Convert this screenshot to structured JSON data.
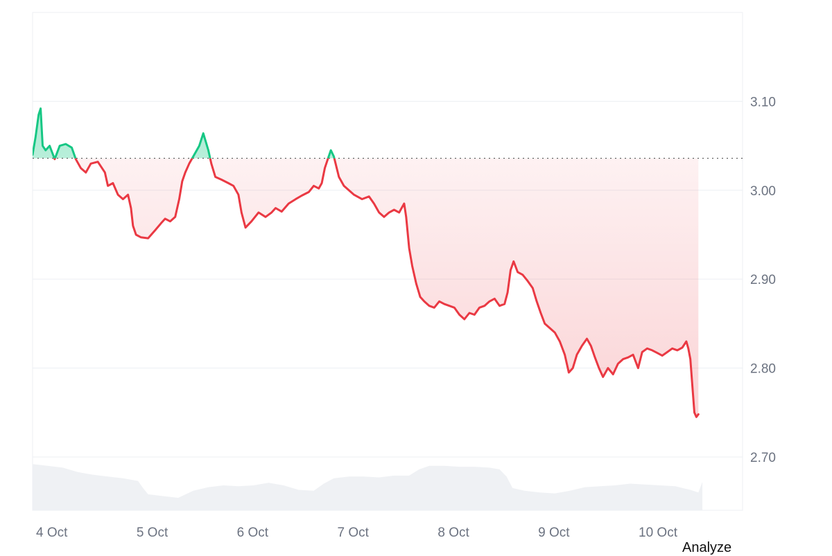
{
  "analyze_label": "Analyze",
  "colors": {
    "up": "#16c784",
    "down": "#ea3943",
    "grid": "#eceff3",
    "baseline": "#555555",
    "volume": "#eff1f4",
    "tick_text": "#6b7280"
  },
  "chart_data": {
    "type": "line",
    "title": "",
    "xlabel": "",
    "ylabel": "",
    "ylim": [
      2.64,
      3.2
    ],
    "xlim": [
      0.0,
      7.07
    ],
    "yticks": [
      "2.70",
      "2.80",
      "2.90",
      "3.00",
      "3.10"
    ],
    "xticks": [
      {
        "label": "4 Oct",
        "x": 0
      },
      {
        "label": "5 Oct",
        "x": 1
      },
      {
        "label": "6 Oct",
        "x": 2
      },
      {
        "label": "7 Oct",
        "x": 3
      },
      {
        "label": "8 Oct",
        "x": 4
      },
      {
        "label": "9 Oct",
        "x": 5
      },
      {
        "label": "10 Oct",
        "x": 6
      }
    ],
    "baseline": 3.036,
    "grid": true,
    "price": [
      [
        0.0,
        3.04
      ],
      [
        0.03,
        3.06
      ],
      [
        0.06,
        3.085
      ],
      [
        0.08,
        3.092
      ],
      [
        0.1,
        3.05
      ],
      [
        0.13,
        3.045
      ],
      [
        0.17,
        3.05
      ],
      [
        0.22,
        3.035
      ],
      [
        0.27,
        3.05
      ],
      [
        0.33,
        3.052
      ],
      [
        0.39,
        3.048
      ],
      [
        0.43,
        3.035
      ],
      [
        0.48,
        3.025
      ],
      [
        0.53,
        3.02
      ],
      [
        0.58,
        3.03
      ],
      [
        0.65,
        3.032
      ],
      [
        0.72,
        3.02
      ],
      [
        0.75,
        3.005
      ],
      [
        0.8,
        3.008
      ],
      [
        0.85,
        2.995
      ],
      [
        0.9,
        2.99
      ],
      [
        0.95,
        2.995
      ],
      [
        0.98,
        2.98
      ],
      [
        1.0,
        2.96
      ],
      [
        1.03,
        2.95
      ],
      [
        1.08,
        2.947
      ],
      [
        1.15,
        2.946
      ],
      [
        1.22,
        2.955
      ],
      [
        1.28,
        2.963
      ],
      [
        1.32,
        2.968
      ],
      [
        1.37,
        2.965
      ],
      [
        1.42,
        2.97
      ],
      [
        1.46,
        2.99
      ],
      [
        1.49,
        3.01
      ],
      [
        1.52,
        3.02
      ],
      [
        1.56,
        3.03
      ],
      [
        1.61,
        3.04
      ],
      [
        1.66,
        3.05
      ],
      [
        1.7,
        3.064
      ],
      [
        1.75,
        3.045
      ],
      [
        1.78,
        3.03
      ],
      [
        1.82,
        3.015
      ],
      [
        1.88,
        3.012
      ],
      [
        1.95,
        3.008
      ],
      [
        2.0,
        3.005
      ],
      [
        2.05,
        2.995
      ],
      [
        2.08,
        2.975
      ],
      [
        2.12,
        2.958
      ],
      [
        2.18,
        2.965
      ],
      [
        2.25,
        2.975
      ],
      [
        2.32,
        2.97
      ],
      [
        2.38,
        2.975
      ],
      [
        2.42,
        2.98
      ],
      [
        2.48,
        2.976
      ],
      [
        2.55,
        2.985
      ],
      [
        2.62,
        2.99
      ],
      [
        2.68,
        2.994
      ],
      [
        2.75,
        2.998
      ],
      [
        2.8,
        3.005
      ],
      [
        2.85,
        3.002
      ],
      [
        2.88,
        3.008
      ],
      [
        2.91,
        3.025
      ],
      [
        2.94,
        3.035
      ],
      [
        2.97,
        3.045
      ],
      [
        3.0,
        3.038
      ],
      [
        3.05,
        3.015
      ],
      [
        3.1,
        3.005
      ],
      [
        3.15,
        3.0
      ],
      [
        3.2,
        2.995
      ],
      [
        3.28,
        2.99
      ],
      [
        3.35,
        2.993
      ],
      [
        3.4,
        2.985
      ],
      [
        3.45,
        2.975
      ],
      [
        3.5,
        2.97
      ],
      [
        3.55,
        2.975
      ],
      [
        3.6,
        2.978
      ],
      [
        3.65,
        2.975
      ],
      [
        3.7,
        2.985
      ],
      [
        3.72,
        2.97
      ],
      [
        3.75,
        2.935
      ],
      [
        3.78,
        2.915
      ],
      [
        3.82,
        2.895
      ],
      [
        3.86,
        2.88
      ],
      [
        3.9,
        2.875
      ],
      [
        3.95,
        2.87
      ],
      [
        4.0,
        2.868
      ],
      [
        4.05,
        2.875
      ],
      [
        4.1,
        2.872
      ],
      [
        4.15,
        2.87
      ],
      [
        4.2,
        2.868
      ],
      [
        4.25,
        2.86
      ],
      [
        4.3,
        2.855
      ],
      [
        4.35,
        2.862
      ],
      [
        4.4,
        2.86
      ],
      [
        4.45,
        2.868
      ],
      [
        4.5,
        2.87
      ],
      [
        4.55,
        2.875
      ],
      [
        4.6,
        2.878
      ],
      [
        4.65,
        2.87
      ],
      [
        4.7,
        2.872
      ],
      [
        4.73,
        2.885
      ],
      [
        4.76,
        2.91
      ],
      [
        4.79,
        2.92
      ],
      [
        4.83,
        2.908
      ],
      [
        4.88,
        2.905
      ],
      [
        4.93,
        2.898
      ],
      [
        4.98,
        2.89
      ],
      [
        5.02,
        2.875
      ],
      [
        5.06,
        2.862
      ],
      [
        5.1,
        2.85
      ],
      [
        5.15,
        2.845
      ],
      [
        5.2,
        2.84
      ],
      [
        5.25,
        2.83
      ],
      [
        5.3,
        2.815
      ],
      [
        5.34,
        2.795
      ],
      [
        5.38,
        2.8
      ],
      [
        5.42,
        2.815
      ],
      [
        5.47,
        2.825
      ],
      [
        5.52,
        2.833
      ],
      [
        5.56,
        2.825
      ],
      [
        5.6,
        2.812
      ],
      [
        5.64,
        2.8
      ],
      [
        5.68,
        2.79
      ],
      [
        5.73,
        2.8
      ],
      [
        5.78,
        2.793
      ],
      [
        5.83,
        2.805
      ],
      [
        5.88,
        2.81
      ],
      [
        5.93,
        2.812
      ],
      [
        5.98,
        2.815
      ],
      [
        6.03,
        2.8
      ],
      [
        6.07,
        2.818
      ],
      [
        6.12,
        2.822
      ],
      [
        6.17,
        2.82
      ],
      [
        6.22,
        2.817
      ],
      [
        6.27,
        2.814
      ],
      [
        6.32,
        2.818
      ],
      [
        6.37,
        2.822
      ],
      [
        6.42,
        2.82
      ],
      [
        6.47,
        2.823
      ],
      [
        6.51,
        2.83
      ],
      [
        6.53,
        2.822
      ],
      [
        6.55,
        2.81
      ],
      [
        6.57,
        2.78
      ],
      [
        6.59,
        2.75
      ],
      [
        6.61,
        2.745
      ],
      [
        6.63,
        2.748
      ]
    ],
    "volume": [
      [
        0.0,
        2.692
      ],
      [
        0.15,
        2.69
      ],
      [
        0.3,
        2.688
      ],
      [
        0.45,
        2.683
      ],
      [
        0.6,
        2.68
      ],
      [
        0.75,
        2.678
      ],
      [
        0.9,
        2.676
      ],
      [
        1.05,
        2.673
      ],
      [
        1.1,
        2.665
      ],
      [
        1.15,
        2.658
      ],
      [
        1.3,
        2.656
      ],
      [
        1.45,
        2.654
      ],
      [
        1.6,
        2.662
      ],
      [
        1.75,
        2.666
      ],
      [
        1.9,
        2.668
      ],
      [
        2.05,
        2.667
      ],
      [
        2.2,
        2.668
      ],
      [
        2.35,
        2.671
      ],
      [
        2.5,
        2.668
      ],
      [
        2.65,
        2.663
      ],
      [
        2.8,
        2.662
      ],
      [
        2.9,
        2.67
      ],
      [
        3.0,
        2.676
      ],
      [
        3.15,
        2.678
      ],
      [
        3.3,
        2.678
      ],
      [
        3.45,
        2.677
      ],
      [
        3.6,
        2.679
      ],
      [
        3.75,
        2.679
      ],
      [
        3.85,
        2.686
      ],
      [
        3.95,
        2.69
      ],
      [
        4.1,
        2.69
      ],
      [
        4.25,
        2.689
      ],
      [
        4.4,
        2.689
      ],
      [
        4.55,
        2.688
      ],
      [
        4.65,
        2.686
      ],
      [
        4.72,
        2.678
      ],
      [
        4.78,
        2.665
      ],
      [
        4.9,
        2.662
      ],
      [
        5.05,
        2.66
      ],
      [
        5.2,
        2.659
      ],
      [
        5.35,
        2.662
      ],
      [
        5.5,
        2.666
      ],
      [
        5.65,
        2.667
      ],
      [
        5.8,
        2.668
      ],
      [
        5.95,
        2.67
      ],
      [
        6.1,
        2.669
      ],
      [
        6.25,
        2.668
      ],
      [
        6.4,
        2.667
      ],
      [
        6.55,
        2.663
      ],
      [
        6.63,
        2.66
      ],
      [
        6.67,
        2.672
      ]
    ]
  }
}
